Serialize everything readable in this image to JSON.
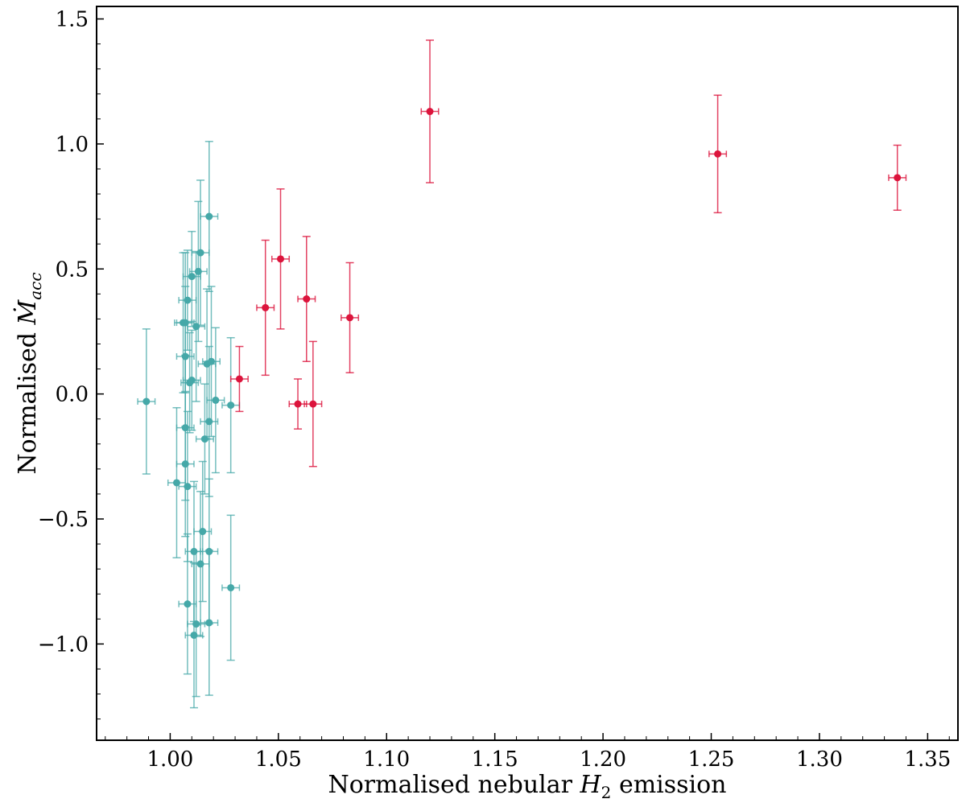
{
  "chart_data": {
    "type": "scatter",
    "title": "",
    "xlabel": "Normalised nebular H2 emission",
    "ylabel": "Normalised Ṁacc",
    "xlim": [
      0.966,
      1.364
    ],
    "ylim": [
      -1.385,
      1.55
    ],
    "xticks": [
      1.0,
      1.05,
      1.1,
      1.15,
      1.2,
      1.25,
      1.3,
      1.35
    ],
    "xtick_labels": [
      "1.00",
      "1.05",
      "1.10",
      "1.15",
      "1.20",
      "1.25",
      "1.30",
      "1.35"
    ],
    "yticks": [
      1.5,
      1.0,
      0.5,
      0.0,
      -0.5,
      -1.0
    ],
    "ytick_labels": [
      "1.5",
      "1.0",
      "0.5",
      "0.0",
      "−0.5",
      "−1.0"
    ],
    "grid": false,
    "legend": "none",
    "series": [
      {
        "color": "#45a8a8",
        "x_err": 0.004,
        "points": [
          {
            "x": 0.989,
            "y": -0.03,
            "ey": 0.29
          },
          {
            "x": 1.018,
            "y": 0.71,
            "ey": 0.3
          },
          {
            "x": 1.014,
            "y": 0.565,
            "ey": 0.29
          },
          {
            "x": 1.013,
            "y": 0.49,
            "ey": 0.28
          },
          {
            "x": 1.01,
            "y": 0.47,
            "ey": 0.18
          },
          {
            "x": 1.008,
            "y": 0.375,
            "ey": 0.2
          },
          {
            "x": 1.006,
            "y": 0.285,
            "ey": 0.28
          },
          {
            "x": 1.007,
            "y": 0.285,
            "ey": 0.28
          },
          {
            "x": 1.012,
            "y": 0.27,
            "ey": 0.3
          },
          {
            "x": 1.007,
            "y": 0.15,
            "ey": 0.28
          },
          {
            "x": 1.017,
            "y": 0.12,
            "ey": 0.3
          },
          {
            "x": 1.019,
            "y": 0.13,
            "ey": 0.3
          },
          {
            "x": 1.01,
            "y": 0.055,
            "ey": 0.2
          },
          {
            "x": 1.009,
            "y": 0.045,
            "ey": 0.2
          },
          {
            "x": 1.021,
            "y": -0.025,
            "ey": 0.29
          },
          {
            "x": 1.028,
            "y": -0.045,
            "ey": 0.27
          },
          {
            "x": 1.007,
            "y": -0.135,
            "ey": 0.29
          },
          {
            "x": 1.018,
            "y": -0.11,
            "ey": 0.3
          },
          {
            "x": 1.016,
            "y": -0.18,
            "ey": 0.22
          },
          {
            "x": 1.007,
            "y": -0.28,
            "ey": 0.29
          },
          {
            "x": 1.003,
            "y": -0.355,
            "ey": 0.3
          },
          {
            "x": 1.008,
            "y": -0.37,
            "ey": 0.3
          },
          {
            "x": 1.015,
            "y": -0.55,
            "ey": 0.28
          },
          {
            "x": 1.011,
            "y": -0.63,
            "ey": 0.28
          },
          {
            "x": 1.018,
            "y": -0.63,
            "ey": 0.29
          },
          {
            "x": 1.014,
            "y": -0.68,
            "ey": 0.29
          },
          {
            "x": 1.028,
            "y": -0.775,
            "ey": 0.29
          },
          {
            "x": 1.008,
            "y": -0.84,
            "ey": 0.28
          },
          {
            "x": 1.012,
            "y": -0.92,
            "ey": 0.29
          },
          {
            "x": 1.018,
            "y": -0.915,
            "ey": 0.29
          },
          {
            "x": 1.011,
            "y": -0.965,
            "ey": 0.29
          }
        ]
      },
      {
        "color": "#dc143c",
        "x_err": 0.004,
        "points": [
          {
            "x": 1.032,
            "y": 0.06,
            "ey": 0.13
          },
          {
            "x": 1.044,
            "y": 0.345,
            "ey": 0.27
          },
          {
            "x": 1.051,
            "y": 0.54,
            "ey": 0.28
          },
          {
            "x": 1.059,
            "y": -0.04,
            "ey": 0.1
          },
          {
            "x": 1.063,
            "y": 0.38,
            "ey": 0.25
          },
          {
            "x": 1.066,
            "y": -0.04,
            "ey": 0.25
          },
          {
            "x": 1.083,
            "y": 0.305,
            "ey": 0.22
          },
          {
            "x": 1.12,
            "y": 1.13,
            "ey": 0.285
          },
          {
            "x": 1.253,
            "y": 0.96,
            "ey": 0.235
          },
          {
            "x": 1.336,
            "y": 0.865,
            "ey": 0.13
          }
        ]
      }
    ]
  }
}
